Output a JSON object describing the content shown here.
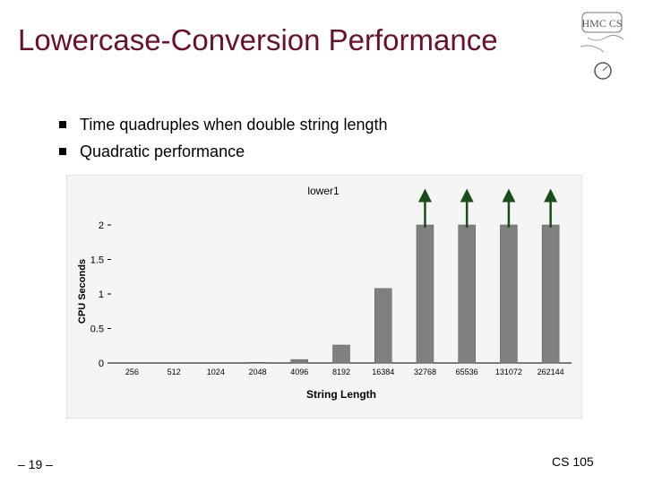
{
  "slide": {
    "title": "Lowercase-Conversion Performance",
    "bullets": [
      "Time quadruples when double string length",
      "Quadratic performance"
    ],
    "page_number": "– 19 –",
    "course": "CS 105",
    "logo_text": "HMC CS"
  },
  "colors": {
    "title": "#6b0f2a",
    "bar": "#808080",
    "arrow": "#1a4d1a",
    "chart_bg": "#f5f5f5"
  },
  "chart_data": {
    "type": "bar",
    "title": "lower1",
    "xlabel": "String Length",
    "ylabel": "CPU Seconds",
    "categories": [
      "256",
      "512",
      "1024",
      "2048",
      "4096",
      "8192",
      "16384",
      "32768",
      "65536",
      "131072",
      "262144"
    ],
    "values": [
      0,
      0,
      0,
      0.01,
      0.05,
      0.26,
      1.08,
      2,
      2,
      2,
      2
    ],
    "clipped_above_max": [
      false,
      false,
      false,
      false,
      false,
      false,
      false,
      true,
      true,
      true,
      true
    ],
    "ylim": [
      0,
      2
    ],
    "yticks": [
      0,
      0.5,
      1,
      1.5,
      2
    ],
    "yticklabels": [
      "0",
      "0.5",
      "1",
      "1.5",
      "2"
    ],
    "grid": false,
    "legend": "none"
  }
}
